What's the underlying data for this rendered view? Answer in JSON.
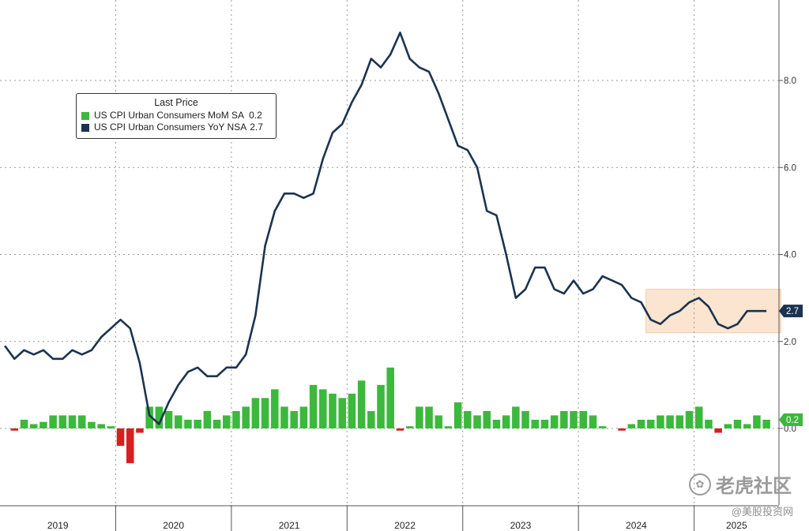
{
  "chart_data": {
    "type": "bar+line",
    "legend_title": "Last Price",
    "series": [
      {
        "name": "US CPI Urban Consumers MoM SA",
        "last_value": "0.2",
        "color": "#3cb83c",
        "negative_color": "#d62020",
        "kind": "bar",
        "values": [
          0.0,
          -0.05,
          0.2,
          0.1,
          0.15,
          0.3,
          0.3,
          0.3,
          0.3,
          0.15,
          0.1,
          0.05,
          -0.4,
          -0.8,
          -0.1,
          0.5,
          0.5,
          0.4,
          0.3,
          0.2,
          0.2,
          0.4,
          0.2,
          0.3,
          0.4,
          0.5,
          0.7,
          0.7,
          0.9,
          0.5,
          0.4,
          0.5,
          1.0,
          0.9,
          0.8,
          0.7,
          0.8,
          1.1,
          0.4,
          1.0,
          1.4,
          -0.05,
          0.05,
          0.5,
          0.5,
          0.3,
          0.05,
          0.6,
          0.4,
          0.3,
          0.4,
          0.2,
          0.3,
          0.5,
          0.4,
          0.2,
          0.2,
          0.3,
          0.4,
          0.4,
          0.4,
          0.3,
          0.05,
          0.0,
          -0.05,
          0.1,
          0.2,
          0.2,
          0.3,
          0.3,
          0.3,
          0.4,
          0.5,
          0.2,
          -0.1,
          0.1,
          0.2,
          0.1,
          0.3,
          0.2
        ]
      },
      {
        "name": "US CPI Urban Consumers YoY NSA",
        "last_value": "2.7",
        "color": "#1b3350",
        "kind": "line",
        "values": [
          1.9,
          1.6,
          1.8,
          1.7,
          1.8,
          1.6,
          1.6,
          1.8,
          1.7,
          1.8,
          2.1,
          2.3,
          2.5,
          2.3,
          1.5,
          0.3,
          0.1,
          0.6,
          1.0,
          1.3,
          1.4,
          1.2,
          1.2,
          1.4,
          1.4,
          1.7,
          2.6,
          4.2,
          5.0,
          5.4,
          5.4,
          5.3,
          5.4,
          6.2,
          6.8,
          7.0,
          7.5,
          7.9,
          8.5,
          8.3,
          8.6,
          9.1,
          8.5,
          8.3,
          8.2,
          7.7,
          7.1,
          6.5,
          6.4,
          6.0,
          5.0,
          4.9,
          4.0,
          3.0,
          3.2,
          3.7,
          3.7,
          3.2,
          3.1,
          3.4,
          3.1,
          3.2,
          3.5,
          3.4,
          3.3,
          3.0,
          2.9,
          2.5,
          2.4,
          2.6,
          2.7,
          2.9,
          3.0,
          2.8,
          2.4,
          2.3,
          2.4,
          2.7,
          2.7,
          2.7
        ]
      }
    ],
    "x_start": "2019-01",
    "x_periods": 80,
    "x_tick_labels": [
      "2019",
      "2020",
      "2021",
      "2022",
      "2023",
      "2024",
      "2025"
    ],
    "year_boundaries": [
      2020,
      2021,
      2022,
      2023,
      2024,
      2025
    ],
    "y_tick_labels": [
      "8.0",
      "6.0",
      "4.0",
      "2.0",
      "0.0"
    ],
    "y_ticks": [
      8.0,
      6.0,
      4.0,
      2.0,
      0.0
    ],
    "ylim": [
      -1.9,
      10.0
    ],
    "grid": true,
    "legend_position": "top-left",
    "highlight": {
      "x_from": 66.5,
      "x_to": 80.5,
      "y_from": 2.2,
      "y_to": 3.2,
      "color": "#fbe5d0"
    },
    "value_tags": [
      {
        "label": "2.7",
        "value": 2.7,
        "color": "#1b3350"
      },
      {
        "label": "0.2",
        "value": 0.2,
        "color": "#3cb83c"
      }
    ]
  },
  "watermark": {
    "brand": "老虎社区",
    "icon": "tiger-logo-icon",
    "sub": "@美股投资网"
  }
}
